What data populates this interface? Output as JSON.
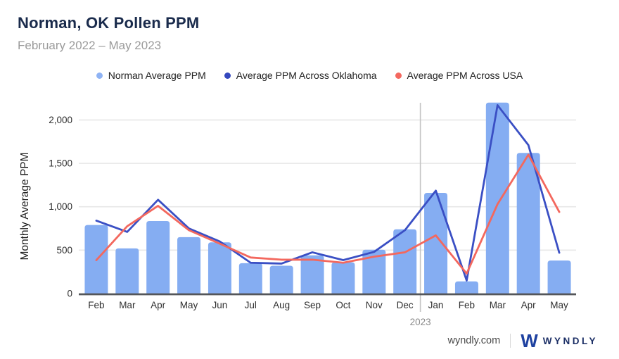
{
  "header": {
    "title": "Norman, OK Pollen PPM",
    "subtitle": "February 2022 – May 2023"
  },
  "legend": [
    {
      "label": "Norman Average PPM",
      "color": "#8fb3f4",
      "marker": "dot"
    },
    {
      "label": "Average PPM Across Oklahoma",
      "color": "#3448be",
      "marker": "dot"
    },
    {
      "label": "Average PPM Across USA",
      "color": "#f4685f",
      "marker": "dot"
    }
  ],
  "chart_data": {
    "type": "bar+line",
    "title": "Norman, OK Pollen PPM",
    "subtitle": "February 2022 – May 2023",
    "categories": [
      "Feb",
      "Mar",
      "Apr",
      "May",
      "Jun",
      "Jul",
      "Aug",
      "Sep",
      "Oct",
      "Nov",
      "Dec",
      "Jan",
      "Feb",
      "Mar",
      "Apr",
      "May"
    ],
    "year_divider": {
      "after_category_index": 10,
      "label": "2023"
    },
    "series": [
      {
        "name": "Norman Average PPM",
        "type": "bar",
        "color": "#85adf2",
        "values": [
          790,
          520,
          835,
          650,
          590,
          350,
          320,
          440,
          360,
          505,
          740,
          1160,
          140,
          2200,
          1620,
          380
        ]
      },
      {
        "name": "Average PPM Across Oklahoma",
        "type": "line",
        "color": "#3a4fc4",
        "values": [
          840,
          710,
          1080,
          750,
          600,
          355,
          345,
          475,
          385,
          480,
          730,
          1185,
          150,
          2170,
          1710,
          470
        ]
      },
      {
        "name": "Average PPM Across USA",
        "type": "line",
        "color": "#f3685e",
        "values": [
          385,
          775,
          1010,
          730,
          575,
          415,
          390,
          390,
          355,
          425,
          475,
          670,
          230,
          1030,
          1600,
          940
        ]
      }
    ],
    "xlabel": "",
    "ylabel": "Monthly Average PPM",
    "yticks": [
      0,
      500,
      1000,
      1500,
      2000
    ],
    "ytick_labels": [
      "0",
      "500",
      "1,000",
      "1,500",
      "2,000"
    ],
    "ylim": [
      0,
      2245
    ],
    "grid": "horizontal",
    "legend_position": "top",
    "gridline_color": "#e7e7e7",
    "axis_line_color": "#54565a",
    "divider_color": "#c4c4c4"
  },
  "footer": {
    "site": "wyndly.com",
    "brand_mark": "W",
    "brand": "WYNDLY"
  }
}
